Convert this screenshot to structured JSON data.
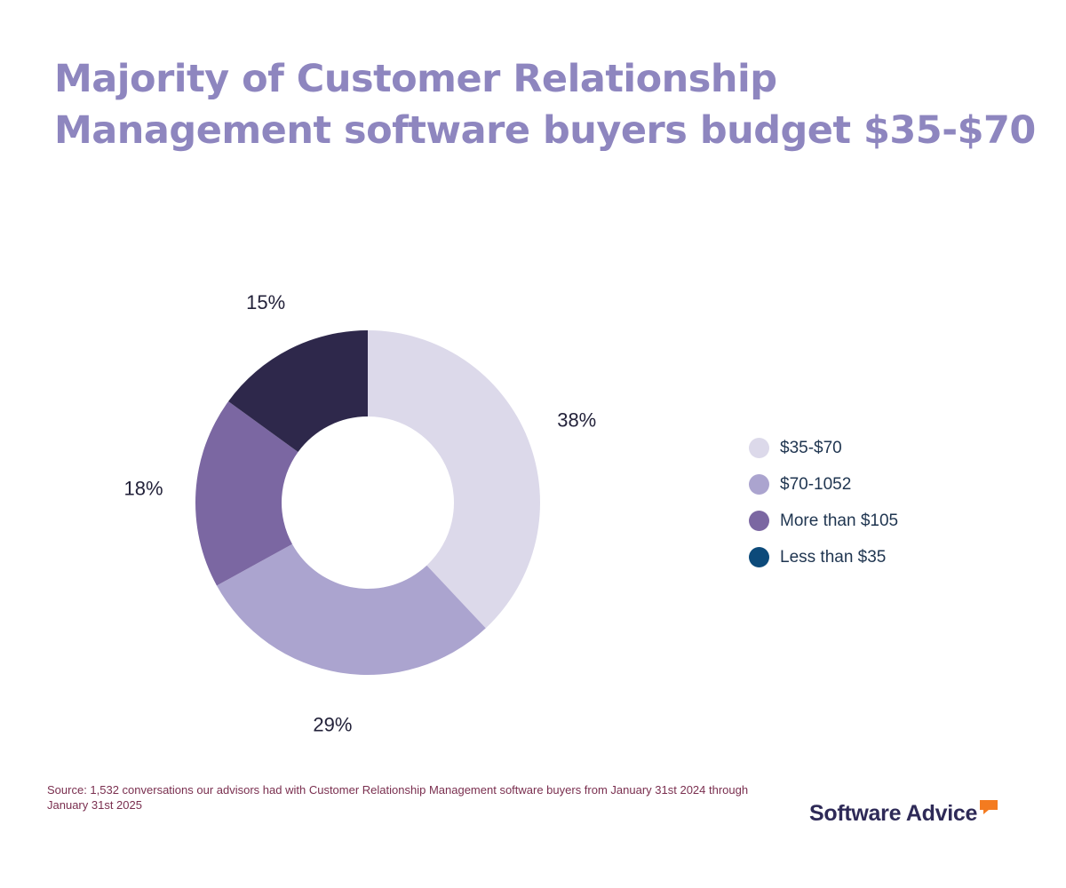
{
  "title": {
    "line1": "Majority of Customer Relationship",
    "line2": "Management software buyers budget $35-$70"
  },
  "chart_data": {
    "type": "pie",
    "style": "donut",
    "title": "Majority of Customer Relationship Management software buyers budget $35-$70",
    "slices": [
      {
        "label": "$35-$70",
        "value": 38,
        "display": "38%",
        "color": "#dcd9ea"
      },
      {
        "label": "$70-1052",
        "value": 29,
        "display": "29%",
        "color": "#aba4cf"
      },
      {
        "label": "More than $105",
        "value": 18,
        "display": "18%",
        "color": "#7b67a2"
      },
      {
        "label": "Less than $35",
        "value": 15,
        "display": "15%",
        "color": "#2e284b"
      }
    ],
    "legend": [
      {
        "label": "$35-$70",
        "color": "#dcd9ea"
      },
      {
        "label": "$70-1052",
        "color": "#aba4cf"
      },
      {
        "label": "More than $105",
        "color": "#7b67a2"
      },
      {
        "label": "Less than $35",
        "color": "#0c4a7a"
      }
    ],
    "legend_position": "right"
  },
  "source": {
    "text": "Source: 1,532 conversations our advisors had with Customer Relationship Management software buyers from January 31st 2024 through January 31st 2025"
  },
  "logo": {
    "text": "Software Advice",
    "mark_color": "#f47b20"
  }
}
